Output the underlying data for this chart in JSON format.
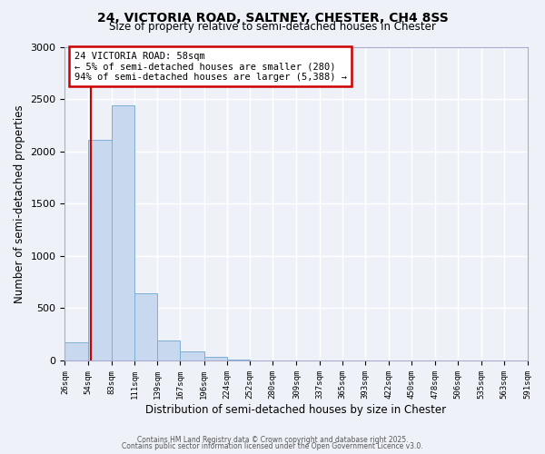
{
  "title_line1": "24, VICTORIA ROAD, SALTNEY, CHESTER, CH4 8SS",
  "title_line2": "Size of property relative to semi-detached houses in Chester",
  "xlabel": "Distribution of semi-detached houses by size in Chester",
  "ylabel": "Number of semi-detached properties",
  "bar_color": "#c8d8ee",
  "bar_edge_color": "#7bafd4",
  "background_color": "#eef2f8",
  "grid_color": "#ffffff",
  "annotation_box_color": "#cc0000",
  "property_line_color": "#cc0000",
  "property_size": 58,
  "annotation_title": "24 VICTORIA ROAD: 58sqm",
  "annotation_line1": "← 5% of semi-detached houses are smaller (280)",
  "annotation_line2": "94% of semi-detached houses are larger (5,388) →",
  "bin_edges": [
    26,
    54,
    83,
    111,
    139,
    167,
    196,
    224,
    252,
    280,
    309,
    337,
    365,
    393,
    422,
    450,
    478,
    506,
    535,
    563,
    591
  ],
  "bin_heights": [
    175,
    2110,
    2440,
    645,
    195,
    85,
    35,
    10,
    0,
    0,
    0,
    0,
    0,
    0,
    0,
    0,
    0,
    0,
    0,
    0
  ],
  "ylim": [
    0,
    3000
  ],
  "yticks": [
    0,
    500,
    1000,
    1500,
    2000,
    2500,
    3000
  ],
  "footer_line1": "Contains HM Land Registry data © Crown copyright and database right 2025.",
  "footer_line2": "Contains public sector information licensed under the Open Government Licence v3.0."
}
